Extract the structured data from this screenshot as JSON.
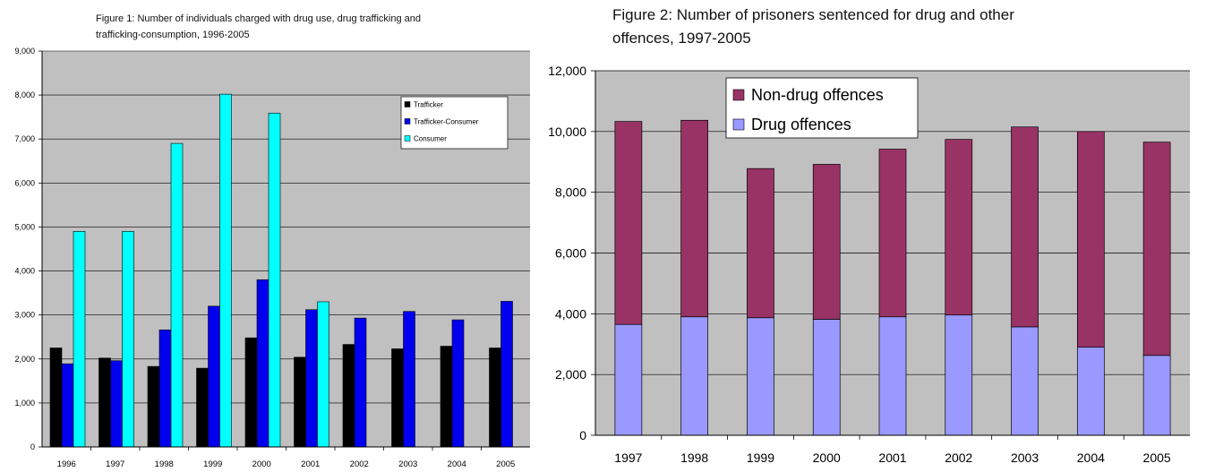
{
  "chart_data": [
    {
      "type": "bar",
      "title": "Figure 1: Number of individuals charged with drug use, drug trafficking and\ntrafficking-consumption, 1996-2005",
      "categories": [
        "1996",
        "1997",
        "1998",
        "1999",
        "2000",
        "2001",
        "2002",
        "2003",
        "2004",
        "2005"
      ],
      "series": [
        {
          "name": "Trafficker",
          "color": "#000000",
          "values": [
            2250,
            2020,
            1830,
            1790,
            2480,
            2040,
            2330,
            2230,
            2290,
            2250
          ]
        },
        {
          "name": "Trafficker-Consumer",
          "color": "#0000ee",
          "values": [
            1890,
            1960,
            2660,
            3200,
            3800,
            3120,
            2930,
            3080,
            2890,
            3310
          ]
        },
        {
          "name": "Consumer",
          "color": "#00ffff",
          "values": [
            4900,
            4900,
            6900,
            8020,
            7590,
            3300,
            null,
            null,
            null,
            null
          ]
        }
      ],
      "ylim": [
        0,
        9000
      ],
      "yticks": [
        "0",
        "1,000",
        "2,000",
        "3,000",
        "4,000",
        "5,000",
        "6,000",
        "7,000",
        "8,000",
        "9,000"
      ],
      "grid": true,
      "legend": "top-right"
    },
    {
      "type": "bar",
      "stacked": true,
      "title": "Figure 2: Number of prisoners sentenced for drug and other\noffences, 1997-2005",
      "categories": [
        "1997",
        "1998",
        "1999",
        "2000",
        "2001",
        "2002",
        "2003",
        "2004",
        "2005"
      ],
      "series": [
        {
          "name": "Drug offences",
          "color": "#9999ff",
          "values": [
            3650,
            3900,
            3870,
            3820,
            3900,
            3960,
            3570,
            2900,
            2630
          ]
        },
        {
          "name": "Non-drug offences",
          "color": "#993366",
          "values": [
            6680,
            6470,
            4910,
            5100,
            5520,
            5780,
            6580,
            7100,
            7020
          ]
        }
      ],
      "ylim": [
        0,
        12000
      ],
      "yticks": [
        "0",
        "2,000",
        "4,000",
        "6,000",
        "8,000",
        "10,000",
        "12,000"
      ],
      "grid": true,
      "legend": "top-left"
    }
  ]
}
